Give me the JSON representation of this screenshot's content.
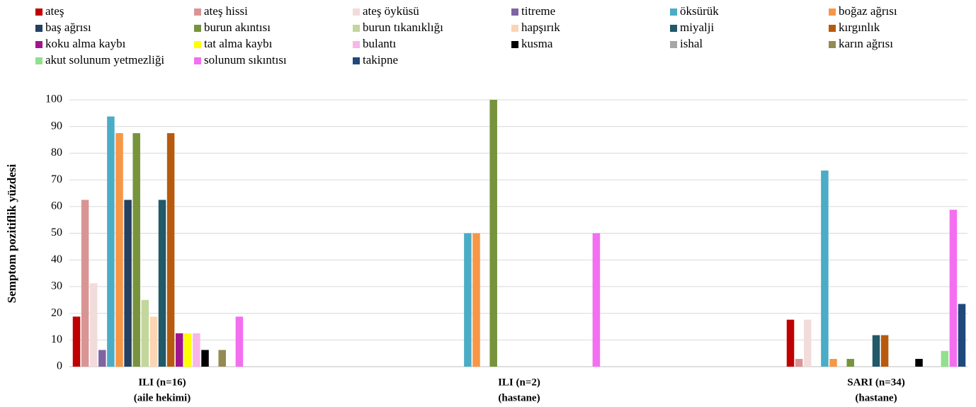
{
  "chart_data": {
    "type": "bar",
    "y_label": "Semptom pozitiflik  yüzdesi",
    "categories": [
      [
        "ILI (n=16)",
        "(aile hekimi)"
      ],
      [
        "ILI (n=2)",
        "(hastane)"
      ],
      [
        "SARI (n=34)",
        "(hastane)"
      ]
    ],
    "ylim": [
      0,
      100
    ],
    "yticks": [
      0,
      10,
      20,
      30,
      40,
      50,
      60,
      70,
      80,
      90,
      100
    ],
    "grid": true,
    "series": [
      {
        "name": "ateş",
        "color": "#c00000",
        "values": [
          18.75,
          0,
          17.6
        ]
      },
      {
        "name": "ateş hissi",
        "color": "#d99594",
        "values": [
          62.5,
          0,
          2.9
        ]
      },
      {
        "name": "ateş öyküsü",
        "color": "#f2dcdb",
        "values": [
          31.25,
          0,
          17.6
        ]
      },
      {
        "name": "titreme",
        "color": "#8064a2",
        "values": [
          6.25,
          0,
          0
        ]
      },
      {
        "name": "öksürük",
        "color": "#4bacc6",
        "values": [
          93.75,
          50,
          73.5
        ]
      },
      {
        "name": "boğaz ağrısı",
        "color": "#f79646",
        "values": [
          87.5,
          50,
          2.9
        ]
      },
      {
        "name": "baş ağrısı",
        "color": "#254061",
        "values": [
          62.5,
          0,
          0
        ]
      },
      {
        "name": "burun akıntısı",
        "color": "#77933c",
        "values": [
          87.5,
          100,
          2.9
        ]
      },
      {
        "name": "burun tıkanıklığı",
        "color": "#c3d69b",
        "values": [
          25,
          0,
          0
        ]
      },
      {
        "name": "hapşırık",
        "color": "#fcd5b5",
        "values": [
          18.75,
          0,
          0
        ]
      },
      {
        "name": "miyalji",
        "color": "#215968",
        "values": [
          62.5,
          0,
          11.8
        ]
      },
      {
        "name": "kırgınlık",
        "color": "#b85a0e",
        "values": [
          87.5,
          0,
          11.8
        ]
      },
      {
        "name": "koku alma  kaybı",
        "color": "#a0158e",
        "values": [
          12.5,
          0,
          0
        ]
      },
      {
        "name": "tat alma kaybı",
        "color": "#ffff00",
        "values": [
          12.5,
          0,
          0
        ]
      },
      {
        "name": "bulantı",
        "color": "#f9b5e8",
        "values": [
          12.5,
          0,
          0
        ]
      },
      {
        "name": "kusma",
        "color": "#000000",
        "values": [
          6.25,
          0,
          2.9
        ]
      },
      {
        "name": "ishal",
        "color": "#a6a6a6",
        "values": [
          0,
          0,
          0
        ]
      },
      {
        "name": "karın ağrısı",
        "color": "#948a54",
        "values": [
          6.25,
          0,
          0
        ]
      },
      {
        "name": "akut solunum yetmezliği",
        "color": "#92e08c",
        "values": [
          0,
          0,
          5.9
        ]
      },
      {
        "name": "solunum sıkıntısı",
        "color": "#f36ff0",
        "values": [
          18.75,
          50,
          58.8
        ]
      },
      {
        "name": "takipne",
        "color": "#1f497d",
        "values": [
          0,
          0,
          23.5
        ]
      }
    ]
  }
}
